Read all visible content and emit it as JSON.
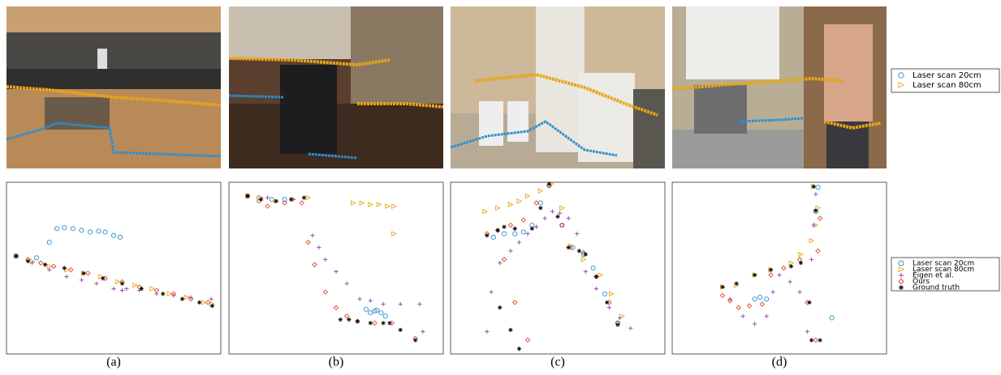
{
  "legend": [
    {
      "name": "Laser scan 20cm",
      "color": "#2a8fd0",
      "marker": "circle"
    },
    {
      "name": "Laser scan 80cm",
      "color": "#e8a517",
      "marker": "triangle"
    },
    {
      "name": "Eigen et al.",
      "color": "#8e3fb0",
      "marker": "plus"
    },
    {
      "name": "Ours",
      "color": "#e0462a",
      "marker": "diamond"
    },
    {
      "name": "Ground truth",
      "color": "#111111",
      "marker": "star"
    }
  ],
  "chart_data": [
    {
      "type": "scatter",
      "caption": "(a)",
      "xlim": [
        0,
        100
      ],
      "ylim": [
        0,
        100
      ],
      "series": [
        {
          "x": [
            4.5,
            14,
            20,
            23.5,
            27,
            31,
            35,
            39,
            43,
            46,
            50,
            53
          ],
          "values": [
            57,
            56,
            65,
            73,
            73.5,
            73,
            72,
            71,
            71.5,
            71,
            69,
            68
          ]
        },
        {
          "x": [
            4.5,
            12,
            20,
            28,
            36,
            44,
            52,
            60,
            68,
            76,
            84,
            92,
            96
          ],
          "values": [
            57,
            54,
            51,
            49,
            47,
            45,
            42,
            40,
            38,
            35,
            33,
            30,
            29
          ]
        },
        {
          "x": [
            4.5,
            12,
            20,
            28,
            35,
            42,
            50,
            54,
            56,
            62,
            70,
            78,
            86,
            95.5
          ],
          "values": [
            57,
            53,
            49,
            45,
            43,
            41,
            38,
            37,
            38,
            37,
            35,
            34,
            33,
            32
          ]
        },
        {
          "x": [
            4.5,
            10,
            16,
            22,
            30,
            38,
            46,
            54,
            62,
            70,
            78,
            86,
            94
          ],
          "values": [
            57,
            55,
            53,
            51,
            49,
            47,
            44,
            42,
            39,
            37,
            35,
            32,
            30
          ]
        },
        {
          "x": [
            4.5,
            10,
            18,
            27,
            36,
            45,
            54,
            63,
            73,
            82,
            90,
            96
          ],
          "values": [
            57,
            54,
            52,
            50,
            47,
            44,
            41,
            38,
            35,
            32,
            30,
            28
          ]
        }
      ]
    },
    {
      "type": "scatter",
      "caption": "(b)",
      "xlim": [
        0,
        100
      ],
      "ylim": [
        0,
        100
      ],
      "series": [
        {
          "x": [
            8.7,
            14,
            20,
            26,
            64,
            66,
            68,
            69,
            71,
            73
          ],
          "values": [
            92,
            91,
            90,
            90,
            26,
            24,
            25,
            25.5,
            24,
            22
          ]
        },
        {
          "x": [
            8.7,
            15,
            22,
            30,
            37,
            58,
            62,
            66,
            70,
            74,
            77,
            77
          ],
          "values": [
            92,
            91,
            89,
            90,
            91,
            88,
            88,
            87,
            87,
            86,
            86,
            70
          ]
        },
        {
          "x": [
            8.7,
            18,
            30,
            39,
            42,
            45,
            50,
            55,
            61,
            66,
            72,
            80,
            89,
            90.5
          ],
          "values": [
            92,
            91,
            90,
            69,
            62,
            55,
            48,
            41,
            32,
            31,
            29,
            29,
            29,
            13
          ]
        },
        {
          "x": [
            8.7,
            14,
            18,
            26,
            34,
            37,
            40,
            45,
            50,
            55,
            60,
            68,
            76,
            87
          ],
          "values": [
            92,
            89,
            86,
            88,
            88,
            65,
            52,
            36,
            27,
            22,
            19,
            18,
            18,
            9
          ]
        },
        {
          "x": [
            8.7,
            15,
            22,
            29,
            35,
            52,
            56,
            60,
            66,
            72,
            75,
            80,
            87
          ],
          "values": [
            92,
            90,
            89,
            90,
            91,
            20,
            20,
            19,
            18,
            18,
            18,
            14,
            8
          ]
        }
      ]
    },
    {
      "type": "scatter",
      "caption": "(c)",
      "xlim": [
        0,
        100
      ],
      "ylim": [
        0,
        100
      ],
      "series": [
        {
          "x": [
            20,
            25,
            30,
            34,
            38,
            42,
            46,
            52,
            57,
            62,
            66.5,
            72,
            78
          ],
          "values": [
            68,
            70,
            70,
            71,
            75,
            88,
            98,
            75,
            62,
            58,
            50,
            35,
            18
          ]
        },
        {
          "x": [
            16,
            22,
            28,
            32,
            36,
            42,
            47,
            52,
            56,
            62,
            70,
            75,
            80
          ],
          "values": [
            83,
            85,
            87,
            89,
            92,
            95,
            99,
            85,
            63,
            55,
            46,
            35,
            22
          ]
        },
        {
          "x": [
            17,
            19,
            23,
            28,
            32,
            36,
            40,
            44,
            47.5,
            51,
            55,
            59,
            63,
            68,
            74,
            79,
            84
          ],
          "values": [
            13,
            36,
            53,
            60,
            65,
            70,
            74,
            79,
            83,
            82,
            79,
            70,
            48,
            38,
            27,
            21,
            15
          ]
        },
        {
          "x": [
            17,
            22,
            28,
            34,
            40,
            46,
            52,
            56,
            62,
            68,
            74,
            78,
            25,
            30,
            36
          ],
          "values": [
            70,
            72,
            75,
            78,
            88,
            98,
            75,
            62,
            59,
            45,
            30,
            18,
            55,
            30,
            8
          ]
        },
        {
          "x": [
            17,
            22,
            25,
            30,
            38,
            42,
            46,
            50,
            55,
            60,
            63,
            68,
            73,
            78,
            23,
            28,
            32
          ],
          "values": [
            69,
            72,
            74,
            73,
            73,
            85,
            99,
            80,
            62,
            60,
            58,
            45,
            30,
            17,
            27,
            14,
            3
          ]
        }
      ]
    },
    {
      "type": "scatter",
      "caption": "(d)",
      "xlim": [
        0,
        100
      ],
      "ylim": [
        0,
        100
      ],
      "series": [
        {
          "x": [
            38.5,
            41,
            44,
            67,
            68,
            74.5
          ],
          "values": [
            32,
            33,
            32,
            83,
            97,
            21
          ]
        },
        {
          "x": [
            23.5,
            30,
            38.5,
            46,
            55.5,
            60,
            65,
            67,
            68,
            66
          ],
          "values": [
            39,
            40,
            46,
            49,
            53,
            58,
            66,
            75,
            85,
            97.5
          ]
        },
        {
          "x": [
            27,
            33,
            38.5,
            44,
            47,
            50,
            55,
            59.5,
            63,
            64,
            65,
            66,
            67
          ],
          "values": [
            32,
            22,
            17.5,
            22,
            36,
            46,
            42,
            36,
            13,
            30,
            55,
            75,
            93
          ]
        },
        {
          "x": [
            23.5,
            27,
            31,
            36,
            42,
            46,
            52,
            59.5,
            63,
            67,
            68,
            69
          ],
          "values": [
            34,
            31,
            27,
            28,
            29,
            46,
            50,
            55,
            30,
            8,
            60,
            79
          ]
        },
        {
          "x": [
            23.5,
            30,
            38.5,
            46,
            55.5,
            60,
            64,
            65,
            69,
            67,
            66
          ],
          "values": [
            39,
            41,
            46,
            49,
            51,
            53,
            30,
            8,
            8,
            83.5,
            97.5
          ]
        }
      ]
    }
  ]
}
